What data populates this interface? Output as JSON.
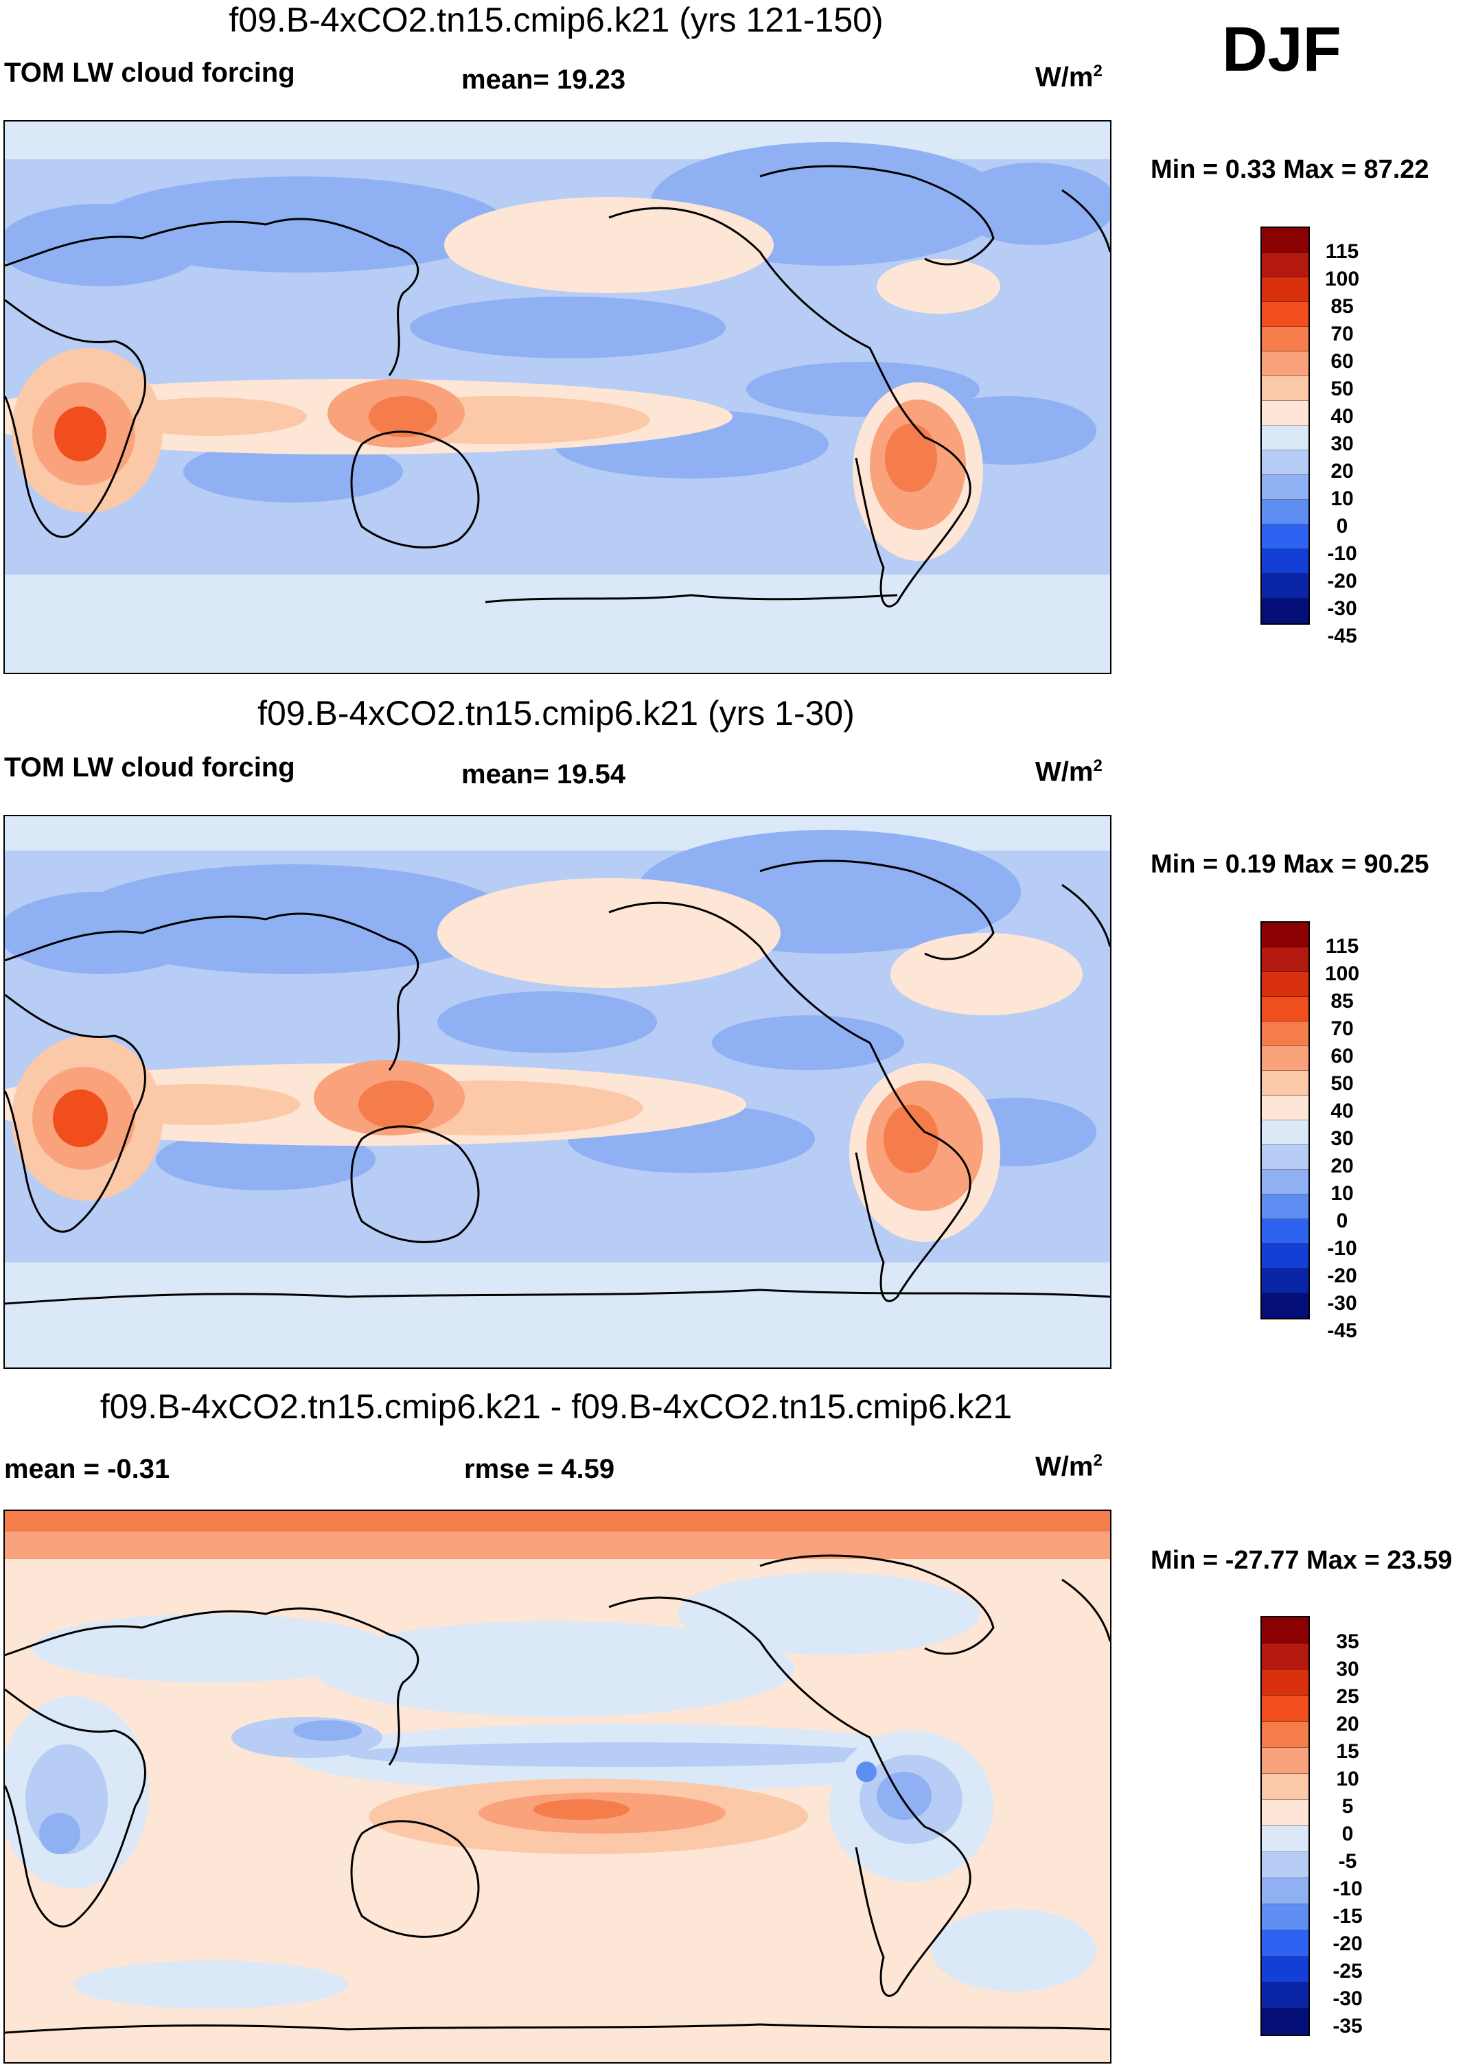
{
  "season": "DJF",
  "panels": [
    {
      "title": "f09.B-4xCO2.tn15.cmip6.k21 (yrs 121-150)",
      "left_label": "TOM LW cloud forcing",
      "center_label": "mean=  19.23",
      "units": "W/m",
      "units_sup": "2",
      "min_max": "Min =   0.33 Max =  87.22",
      "colorbar": {
        "colors": [
          "#8b0000",
          "#b3190e",
          "#d9300d",
          "#f04f1d",
          "#f57c4b",
          "#f9a27c",
          "#fbc9a8",
          "#fde6d6",
          "#dbe8f8",
          "#b7cdf5",
          "#8fb0f3",
          "#5e8ef2",
          "#2d63f0",
          "#133fd6",
          "#0a25a6",
          "#040e78"
        ],
        "ticks": [
          "115",
          "100",
          "85",
          "70",
          "60",
          "50",
          "40",
          "30",
          "20",
          "10",
          "0",
          "-10",
          "-20",
          "-30",
          "-45"
        ]
      }
    },
    {
      "title": "f09.B-4xCO2.tn15.cmip6.k21 (yrs 1-30)",
      "left_label": "TOM LW cloud forcing",
      "center_label": "mean=  19.54",
      "units": "W/m",
      "units_sup": "2",
      "min_max": "Min =   0.19 Max =  90.25",
      "colorbar": {
        "colors": [
          "#8b0000",
          "#b3190e",
          "#d9300d",
          "#f04f1d",
          "#f57c4b",
          "#f9a27c",
          "#fbc9a8",
          "#fde6d6",
          "#dbe8f8",
          "#b7cdf5",
          "#8fb0f3",
          "#5e8ef2",
          "#2d63f0",
          "#133fd6",
          "#0a25a6",
          "#040e78"
        ],
        "ticks": [
          "115",
          "100",
          "85",
          "70",
          "60",
          "50",
          "40",
          "30",
          "20",
          "10",
          "0",
          "-10",
          "-20",
          "-30",
          "-45"
        ]
      }
    },
    {
      "title": "f09.B-4xCO2.tn15.cmip6.k21 - f09.B-4xCO2.tn15.cmip6.k21",
      "left_label": "mean =  -0.31",
      "center_label": "rmse =    4.59",
      "units": "W/m",
      "units_sup": "2",
      "min_max": "Min = -27.77 Max =  23.59",
      "colorbar": {
        "colors": [
          "#8b0000",
          "#b3190e",
          "#d9300d",
          "#f04f1d",
          "#f57c4b",
          "#f9a27c",
          "#fbc9a8",
          "#fde6d6",
          "#dbe8f8",
          "#b7cdf5",
          "#8fb0f3",
          "#5e8ef2",
          "#2d63f0",
          "#133fd6",
          "#0a25a6",
          "#040e78"
        ],
        "ticks": [
          "35",
          "30",
          "25",
          "20",
          "15",
          "10",
          "5",
          "0",
          "-5",
          "-10",
          "-15",
          "-20",
          "-25",
          "-30",
          "-35"
        ]
      }
    }
  ]
}
